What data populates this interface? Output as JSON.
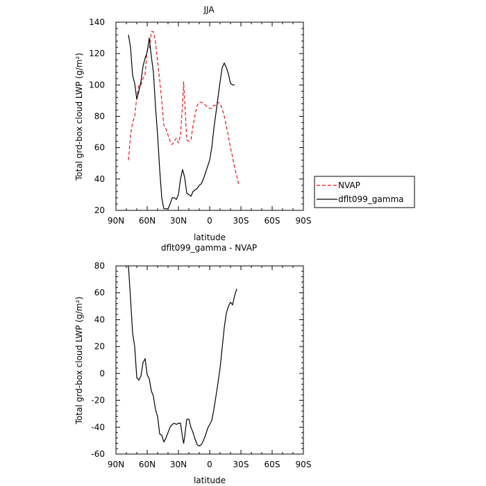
{
  "chart_data": [
    {
      "type": "line",
      "title": "JJA",
      "xlabel": "latitude",
      "ylabel": "Total grd-box cloud LWP (g/m²)",
      "xlim": [
        90,
        -90
      ],
      "ylim": [
        20,
        140
      ],
      "xticks": [
        90,
        60,
        30,
        0,
        -30,
        -60,
        -90
      ],
      "xtick_labels": [
        "90N",
        "60N",
        "30N",
        "0",
        "30S",
        "60S",
        "90S"
      ],
      "yticks": [
        20,
        40,
        60,
        80,
        100,
        120,
        140
      ],
      "legend_position": "right",
      "series": [
        {
          "name": "NVAP",
          "color": "#e8141e",
          "dash": "dashed",
          "points": [
            [
              78,
              52
            ],
            [
              76,
              68
            ],
            [
              74,
              76
            ],
            [
              72,
              80
            ],
            [
              70,
              92
            ],
            [
              68,
              100
            ],
            [
              66,
              100
            ],
            [
              64,
              104
            ],
            [
              62,
              107
            ],
            [
              60,
              122
            ],
            [
              58,
              123
            ],
            [
              56,
              134
            ],
            [
              54,
              134
            ],
            [
              52,
              127
            ],
            [
              50,
              115
            ],
            [
              48,
              103
            ],
            [
              46,
              90
            ],
            [
              44,
              74
            ],
            [
              42,
              72
            ],
            [
              40,
              68
            ],
            [
              38,
              64
            ],
            [
              36,
              62
            ],
            [
              34,
              64
            ],
            [
              32,
              66
            ],
            [
              30,
              63
            ],
            [
              28,
              68
            ],
            [
              26,
              88
            ],
            [
              25,
              102
            ],
            [
              24,
              90
            ],
            [
              22,
              65
            ],
            [
              20,
              64
            ],
            [
              18,
              65
            ],
            [
              16,
              74
            ],
            [
              14,
              81
            ],
            [
              12,
              87
            ],
            [
              10,
              89
            ],
            [
              8,
              89
            ],
            [
              6,
              88
            ],
            [
              4,
              87
            ],
            [
              2,
              86
            ],
            [
              0,
              85
            ],
            [
              -2,
              85
            ],
            [
              -4,
              87
            ],
            [
              -6,
              87
            ],
            [
              -8,
              89
            ],
            [
              -10,
              88
            ],
            [
              -12,
              85
            ],
            [
              -14,
              80
            ],
            [
              -16,
              74
            ],
            [
              -18,
              67
            ],
            [
              -20,
              60
            ],
            [
              -22,
              54
            ],
            [
              -24,
              47
            ],
            [
              -26,
              42
            ],
            [
              -28,
              36
            ]
          ]
        },
        {
          "name": "dflt099_gamma",
          "color": "#000000",
          "dash": "solid",
          "points": [
            [
              78,
              132
            ],
            [
              76,
              124
            ],
            [
              74,
              106
            ],
            [
              72,
              101
            ],
            [
              70,
              91
            ],
            [
              68,
              96
            ],
            [
              66,
              102
            ],
            [
              64,
              112
            ],
            [
              62,
              117
            ],
            [
              60,
              121
            ],
            [
              58,
              130
            ],
            [
              56,
              118
            ],
            [
              54,
              108
            ],
            [
              52,
              86
            ],
            [
              50,
              68
            ],
            [
              48,
              46
            ],
            [
              46,
              28
            ],
            [
              44,
              21
            ],
            [
              42,
              21
            ],
            [
              40,
              21
            ],
            [
              38,
              24
            ],
            [
              36,
              28
            ],
            [
              34,
              28
            ],
            [
              32,
              27
            ],
            [
              30,
              30
            ],
            [
              28,
              40
            ],
            [
              26,
              46
            ],
            [
              24,
              41
            ],
            [
              22,
              31
            ],
            [
              20,
              30
            ],
            [
              18,
              29
            ],
            [
              16,
              32
            ],
            [
              14,
              33
            ],
            [
              12,
              34
            ],
            [
              10,
              36
            ],
            [
              8,
              37
            ],
            [
              6,
              40
            ],
            [
              4,
              44
            ],
            [
              2,
              48
            ],
            [
              0,
              52
            ],
            [
              -2,
              60
            ],
            [
              -4,
              72
            ],
            [
              -6,
              82
            ],
            [
              -8,
              92
            ],
            [
              -10,
              102
            ],
            [
              -12,
              111
            ],
            [
              -14,
              114
            ],
            [
              -16,
              111
            ],
            [
              -18,
              107
            ],
            [
              -20,
              101
            ],
            [
              -22,
              100
            ],
            [
              -24,
              100
            ]
          ]
        }
      ]
    },
    {
      "type": "line",
      "title": "dflt099_gamma - NVAP",
      "xlabel": "latitude",
      "ylabel": "Total grd-box cloud LWP (g/m²)",
      "xlim": [
        90,
        -90
      ],
      "ylim": [
        -60,
        80
      ],
      "xticks": [
        90,
        60,
        30,
        0,
        -30,
        -60,
        -90
      ],
      "xtick_labels": [
        "90N",
        "60N",
        "30N",
        "0",
        "30S",
        "60S",
        "90S"
      ],
      "yticks": [
        -60,
        -40,
        -20,
        0,
        20,
        40,
        60,
        80
      ],
      "series": [
        {
          "name": "",
          "color": "#000000",
          "dash": "solid",
          "points": [
            [
              78,
              80
            ],
            [
              76,
              56
            ],
            [
              74,
              30
            ],
            [
              72,
              20
            ],
            [
              70,
              -3
            ],
            [
              68,
              -5
            ],
            [
              66,
              -2
            ],
            [
              64,
              8
            ],
            [
              62,
              11
            ],
            [
              60,
              -1
            ],
            [
              58,
              -4
            ],
            [
              56,
              -13
            ],
            [
              54,
              -17
            ],
            [
              52,
              -27
            ],
            [
              50,
              -32
            ],
            [
              48,
              -45
            ],
            [
              46,
              -46
            ],
            [
              44,
              -51
            ],
            [
              42,
              -48
            ],
            [
              40,
              -44
            ],
            [
              38,
              -40
            ],
            [
              36,
              -38
            ],
            [
              34,
              -37
            ],
            [
              32,
              -38
            ],
            [
              30,
              -37
            ],
            [
              28,
              -37
            ],
            [
              26,
              -48
            ],
            [
              25,
              -52
            ],
            [
              24,
              -47
            ],
            [
              22,
              -34
            ],
            [
              20,
              -34
            ],
            [
              18,
              -40
            ],
            [
              16,
              -44
            ],
            [
              14,
              -49
            ],
            [
              12,
              -53
            ],
            [
              10,
              -54
            ],
            [
              8,
              -53
            ],
            [
              6,
              -50
            ],
            [
              4,
              -46
            ],
            [
              2,
              -41
            ],
            [
              0,
              -38
            ],
            [
              -2,
              -35
            ],
            [
              -4,
              -27
            ],
            [
              -6,
              -17
            ],
            [
              -8,
              -7
            ],
            [
              -10,
              4
            ],
            [
              -12,
              19
            ],
            [
              -14,
              34
            ],
            [
              -16,
              45
            ],
            [
              -18,
              50
            ],
            [
              -20,
              53
            ],
            [
              -22,
              51
            ],
            [
              -24,
              58
            ],
            [
              -26,
              63
            ]
          ]
        }
      ]
    }
  ]
}
